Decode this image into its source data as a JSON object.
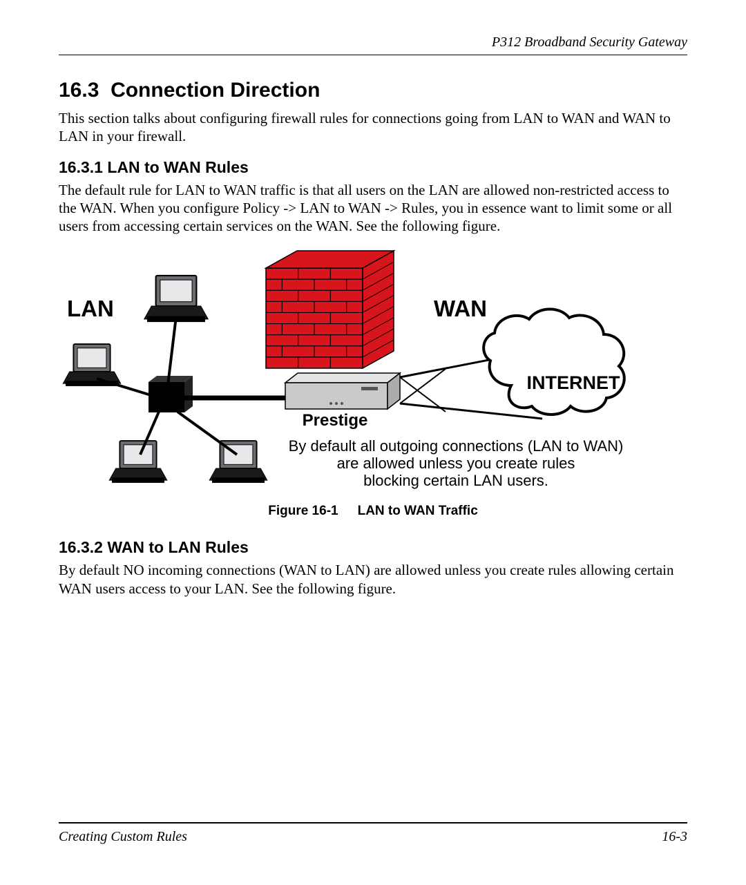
{
  "header": {
    "right": "P312  Broadband Security Gateway"
  },
  "section": {
    "number": "16.3",
    "title": "Connection Direction",
    "intro": "This section talks about configuring firewall rules for connections going from LAN to WAN and WAN to LAN in your firewall."
  },
  "sub1": {
    "number": "16.3.1",
    "title": "LAN to WAN Rules",
    "body": "The default rule for LAN to WAN traffic is that all users on the LAN are allowed non-restricted access to the WAN. When you configure Policy -> LAN to WAN -> Rules, you in essence want to limit some or all users from accessing certain services on the WAN. See the following figure."
  },
  "figure": {
    "lan_label": "LAN",
    "wan_label": "WAN",
    "internet_label": "INTERNET",
    "device_label": "Prestige",
    "caption_l1": "By default all outgoing connections (LAN to WAN)",
    "caption_l2": "are  allowed unless you create rules",
    "caption_l3": "blocking certain LAN users.",
    "fig_number": "Figure 16-1",
    "fig_title": "LAN to WAN Traffic",
    "colors": {
      "wall_fill": "#d8151c",
      "wall_stroke": "#000000",
      "monitor_fill": "#6b6d70",
      "monitor_screen": "#e6e8ea",
      "hub_fill": "#000000",
      "router_fill": "#c8cacc",
      "router_top": "#e2e4e6",
      "cloud_stroke": "#000000",
      "cloud_fill": "#ffffff",
      "line": "#000000",
      "text": "#000000"
    }
  },
  "sub2": {
    "number": "16.3.2",
    "title": "WAN to LAN Rules",
    "body": "By default NO incoming connections (WAN to LAN) are allowed unless you create rules allowing certain WAN users access to your LAN. See the following figure."
  },
  "footer": {
    "left": "Creating Custom Rules",
    "right": "16-3"
  }
}
